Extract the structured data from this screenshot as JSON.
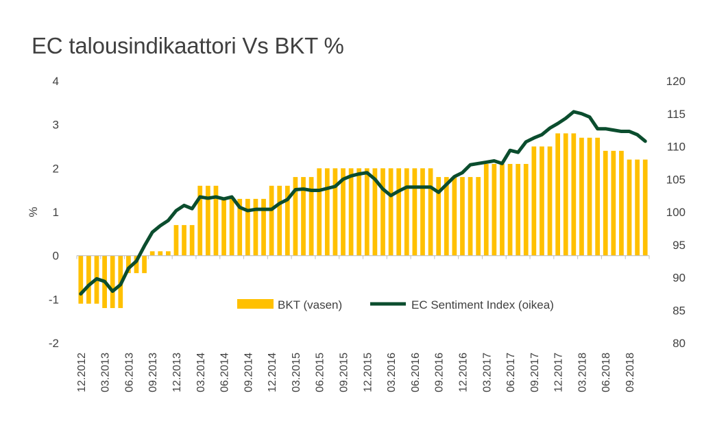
{
  "chart_data": {
    "type": "bar+line",
    "title": "EC talousindikaattori Vs BKT %",
    "ylabel_left": "%",
    "ylim_left": [
      -2,
      4
    ],
    "yticks_left": [
      "4",
      "3",
      "2",
      "1",
      "0",
      "-1",
      "-2"
    ],
    "ylim_right": [
      80,
      120
    ],
    "yticks_right": [
      "120",
      "115",
      "110",
      "105",
      "100",
      "95",
      "90",
      "85",
      "80"
    ],
    "x_tick_labels": [
      "12.2012",
      "03.2013",
      "06.2013",
      "09.2013",
      "12.2013",
      "03.2014",
      "06.2014",
      "09.2014",
      "12.2014",
      "03.2015",
      "06.2015",
      "09.2015",
      "12.2015",
      "03.2016",
      "06.2016",
      "09.2016",
      "12.2016",
      "03.2017",
      "06.2017",
      "09.2017",
      "12.2017",
      "03.2018",
      "06.2018",
      "09.2018"
    ],
    "legend_position": "lower-right",
    "colors": {
      "bar": "#FFC000",
      "line": "#0B4D2E",
      "text": "#404040",
      "axis": "#BFBFBF"
    },
    "series": [
      {
        "name": "BKT (vasen)",
        "type": "bar",
        "axis": "left",
        "values": [
          -1.1,
          -1.1,
          -1.1,
          -1.2,
          -1.2,
          -1.2,
          -0.4,
          -0.4,
          -0.4,
          0.1,
          0.1,
          0.1,
          0.7,
          0.7,
          0.7,
          1.6,
          1.6,
          1.6,
          1.3,
          1.3,
          1.3,
          1.3,
          1.3,
          1.3,
          1.6,
          1.6,
          1.6,
          1.8,
          1.8,
          1.8,
          2.0,
          2.0,
          2.0,
          2.0,
          2.0,
          2.0,
          2.0,
          2.0,
          2.0,
          2.0,
          2.0,
          2.0,
          2.0,
          2.0,
          2.0,
          1.8,
          1.8,
          1.8,
          1.8,
          1.8,
          1.8,
          2.1,
          2.1,
          2.1,
          2.1,
          2.1,
          2.1,
          2.5,
          2.5,
          2.5,
          2.8,
          2.8,
          2.8,
          2.7,
          2.7,
          2.7,
          2.4,
          2.4,
          2.4,
          2.2,
          2.2,
          2.2
        ]
      },
      {
        "name": "EC Sentiment Index (oikea)",
        "type": "line",
        "axis": "right",
        "values": [
          87.5,
          88.8,
          89.8,
          89.4,
          87.9,
          88.9,
          91.4,
          92.5,
          94.8,
          96.9,
          97.9,
          98.7,
          100.2,
          101.0,
          100.5,
          102.3,
          102.1,
          102.3,
          102.0,
          102.3,
          100.7,
          100.2,
          100.4,
          100.4,
          100.4,
          101.3,
          101.9,
          103.4,
          103.5,
          103.3,
          103.3,
          103.6,
          103.9,
          105.0,
          105.5,
          105.8,
          106.0,
          105.0,
          103.5,
          102.5,
          103.2,
          103.8,
          103.8,
          103.8,
          103.8,
          103.0,
          104.2,
          105.4,
          106.0,
          107.2,
          107.4,
          107.6,
          107.8,
          107.4,
          109.4,
          109.1,
          110.7,
          111.3,
          111.8,
          112.8,
          113.5,
          114.3,
          115.3,
          115.0,
          114.5,
          112.7,
          112.7,
          112.5,
          112.3,
          112.3,
          111.8,
          110.8
        ]
      }
    ]
  }
}
